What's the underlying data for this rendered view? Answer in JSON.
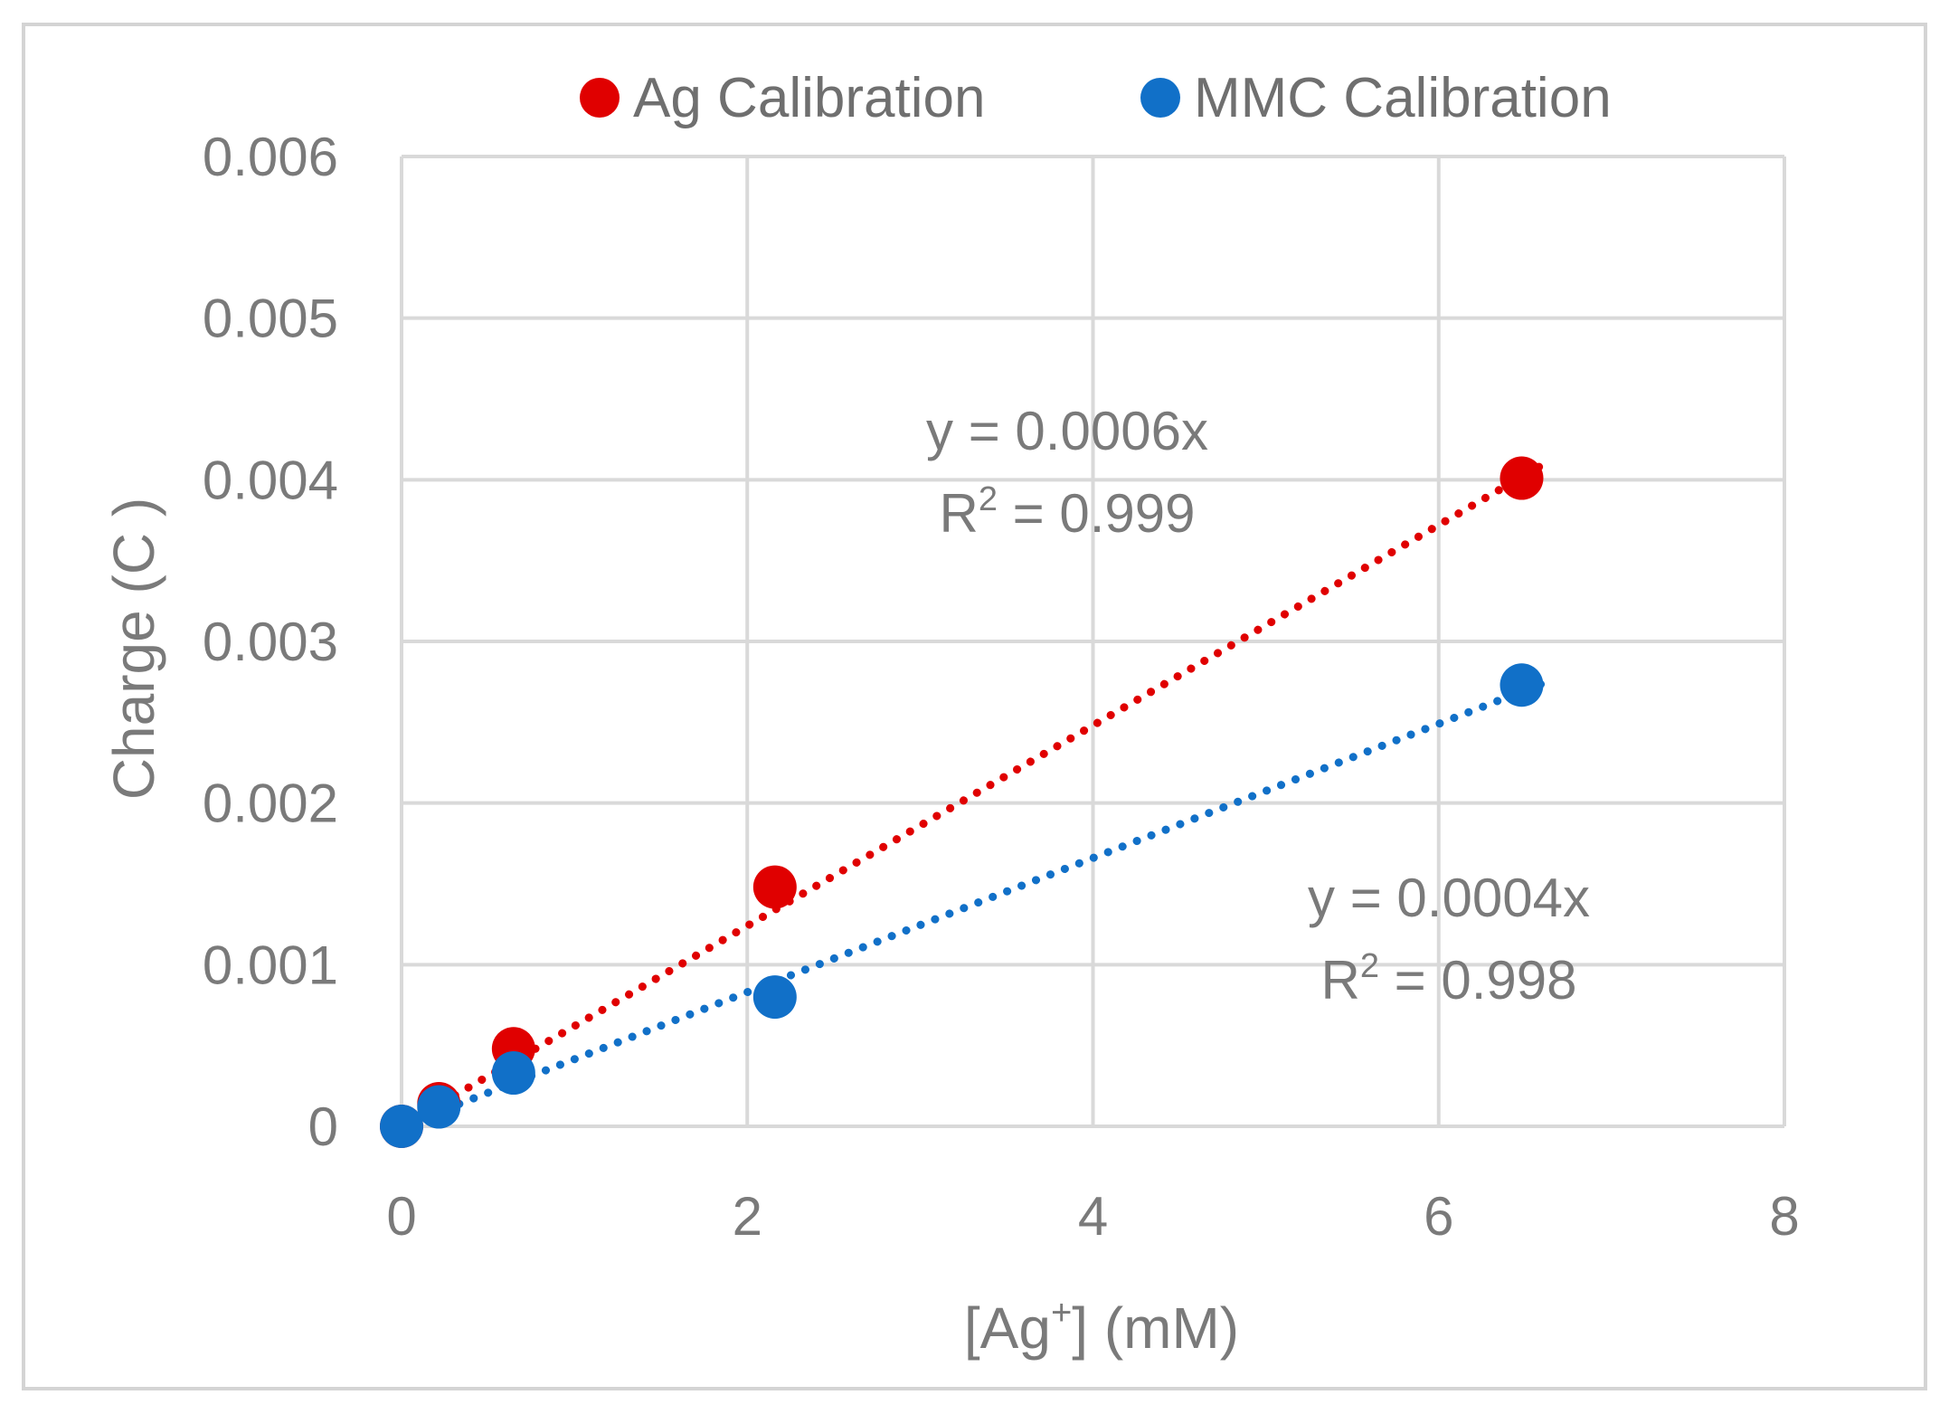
{
  "chart_data": {
    "type": "scatter",
    "title": "",
    "xlabel": {
      "main": "[Ag",
      "sup": "+",
      "tail": "] (mM)"
    },
    "ylabel": "Charge (C )",
    "xlim": [
      0,
      8
    ],
    "ylim": [
      0,
      0.006
    ],
    "xticks": [
      0,
      2,
      4,
      6,
      8
    ],
    "xtick_labels": [
      "0",
      "2",
      "4",
      "6",
      "8"
    ],
    "yticks": [
      0,
      0.001,
      0.002,
      0.003,
      0.004,
      0.005,
      0.006
    ],
    "ytick_labels": [
      "0",
      "0.001",
      "0.002",
      "0.003",
      "0.004",
      "0.005",
      "0.006"
    ],
    "grid": true,
    "legend_position": "top",
    "series": [
      {
        "name": "Ag Calibration",
        "color": "#e00000",
        "x": [
          0,
          0.216,
          0.648,
          2.16,
          6.48
        ],
        "y": [
          0,
          0.00014,
          0.00048,
          0.00148,
          0.00401
        ],
        "trendline": {
          "slope": 0.00062,
          "x_range": [
            0,
            6.6
          ],
          "style": "dotted"
        },
        "annotation": {
          "equation": "y = 0.0006x",
          "r2_prefix": "R",
          "r2_sup": "2",
          "r2_value": " = 0.999"
        }
      },
      {
        "name": "MMC Calibration",
        "color": "#1170c8",
        "x": [
          0,
          0.216,
          0.648,
          2.16,
          6.48
        ],
        "y": [
          0,
          0.00012,
          0.00033,
          0.0008,
          0.00273
        ],
        "trendline": {
          "slope": 0.000415,
          "x_range": [
            0,
            6.6
          ],
          "style": "dotted"
        },
        "annotation": {
          "equation": "y = 0.0004x",
          "r2_prefix": "R",
          "r2_sup": "2",
          "r2_value": " = 0.998"
        }
      }
    ]
  }
}
